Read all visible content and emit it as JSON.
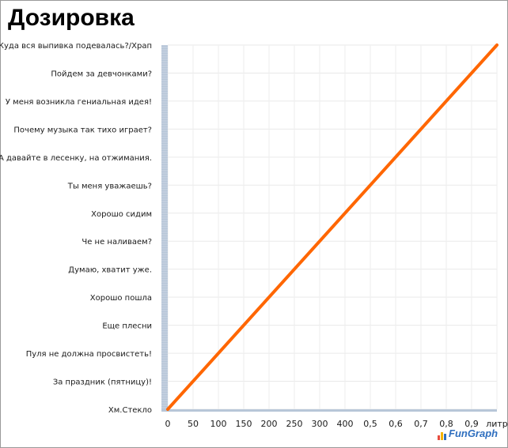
{
  "chart_data": {
    "type": "line",
    "title": "Дозировка",
    "categories": [
      "Хм.Стекло",
      "За праздник (пятницу)!",
      "Пуля не должна просвистеть!",
      "Еще плесни",
      "Хорошо пошла",
      "Думаю, хватит уже.",
      "Че не наливаем?",
      "Хорошо сидим",
      "Ты меня уважаешь?",
      "А давайте в лесенку, на отжимания.",
      "Почему музыка так тихо играет?",
      "У меня возникла гениальная идея!",
      "Пойдем за девчонками?",
      "Куда вся выпивка подевалась?/Храп"
    ],
    "x_tick_labels": [
      "0",
      "50",
      "100",
      "150",
      "200",
      "250",
      "300",
      "400",
      "0,5",
      "0,6",
      "0,7",
      "0,8",
      "0,9",
      "литр"
    ],
    "series": [
      {
        "start_category_index": 0,
        "end_category_index": 13,
        "color": "#ff6600"
      }
    ],
    "grid": true,
    "axis_color": "#b7c6d8"
  },
  "branding": {
    "logo_text": "FunGraph",
    "logo_colors": [
      "#e84c3d",
      "#f5b400",
      "#2f6fbf"
    ]
  }
}
